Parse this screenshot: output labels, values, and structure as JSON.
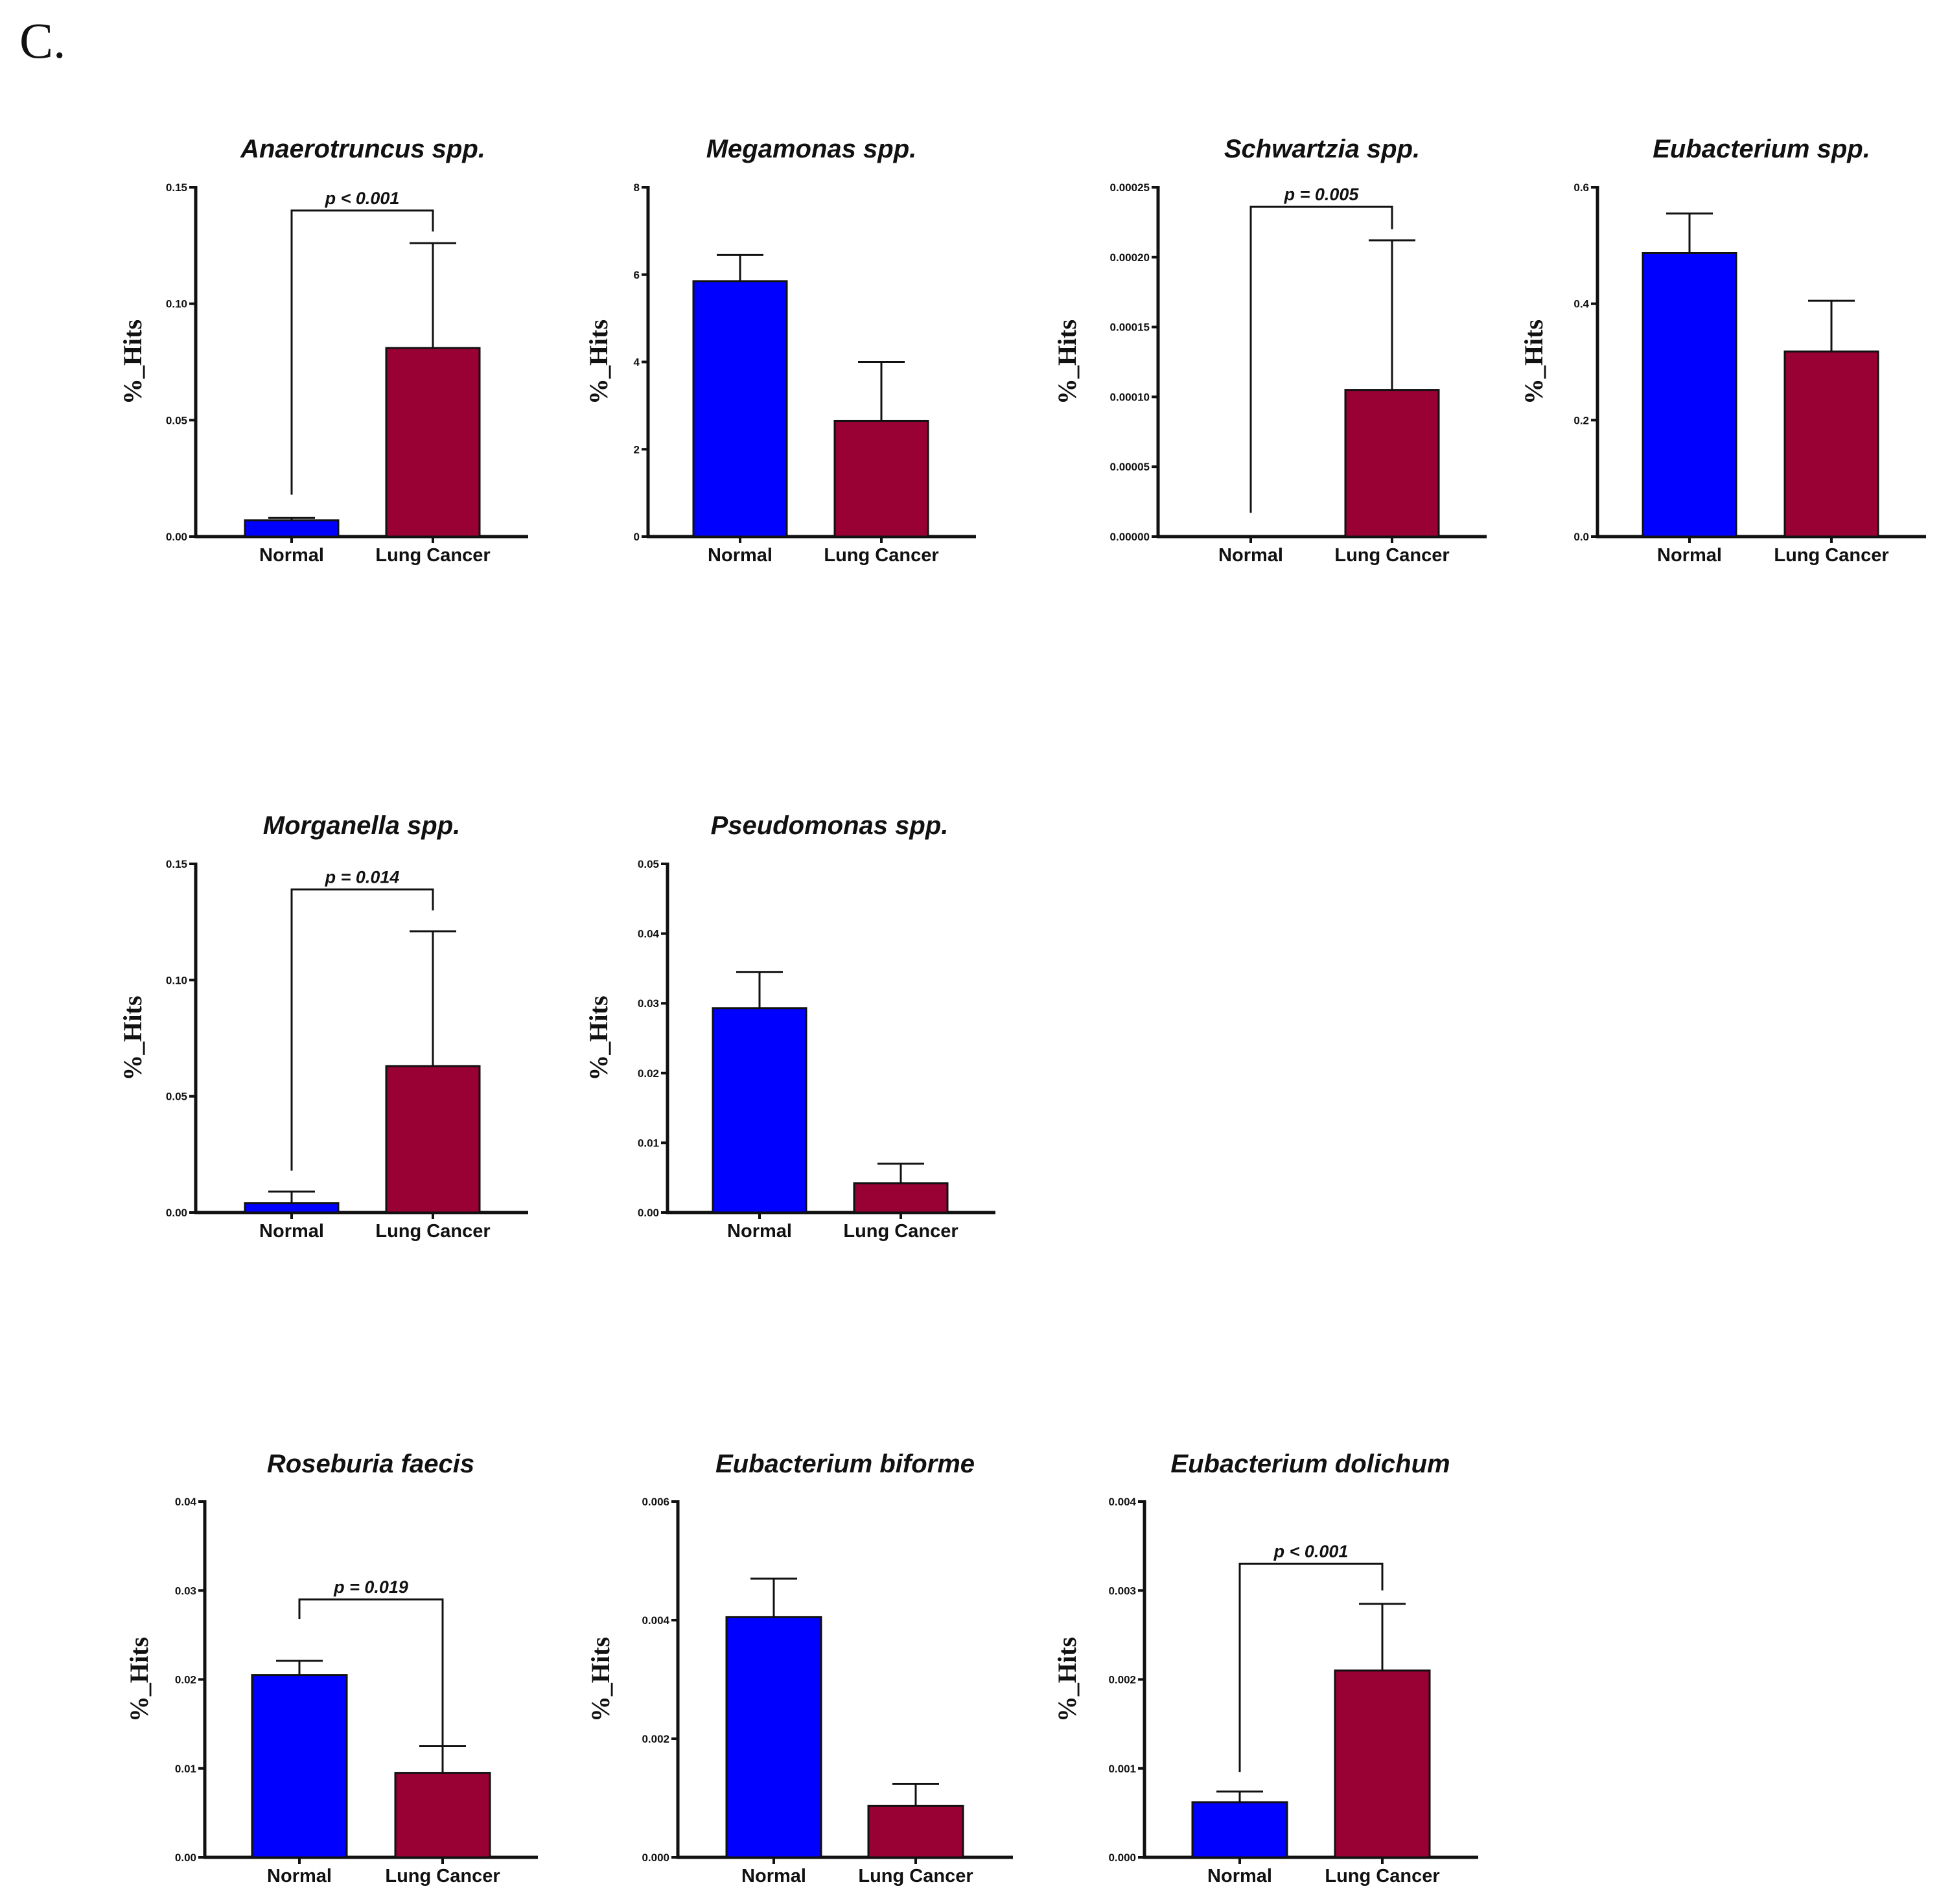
{
  "figure": {
    "panel_label": "C.",
    "colors": {
      "normal": "#0000ff",
      "lung_cancer": "#990033",
      "axis": "#111111"
    }
  },
  "chart_data": [
    {
      "type": "bar",
      "title": "Anaerotruncus spp.",
      "ylabel": "%_Hits",
      "categories": [
        "Normal",
        "Lung Cancer"
      ],
      "values": [
        0.007,
        0.081
      ],
      "errors": [
        0.001,
        0.045
      ],
      "ylim": [
        0,
        0.15
      ],
      "yticks": [
        0,
        0.05,
        0.1,
        0.15
      ],
      "ytick_labels": [
        "0.00",
        "0.05",
        "0.10",
        "0.15"
      ],
      "significance": {
        "label": "p  < 0.001",
        "bracket_top": 0.14,
        "left_end": 0.018,
        "right_end": 0.131
      }
    },
    {
      "type": "bar",
      "title": "Megamonas spp.",
      "ylabel": "%_Hits",
      "categories": [
        "Normal",
        "Lung Cancer"
      ],
      "values": [
        5.85,
        2.65
      ],
      "errors": [
        0.6,
        1.35
      ],
      "ylim": [
        0,
        8
      ],
      "yticks": [
        0,
        2,
        4,
        6,
        8
      ],
      "ytick_labels": [
        "0",
        "2",
        "4",
        "6",
        "8"
      ]
    },
    {
      "type": "bar",
      "title": "Schwartzia spp.",
      "ylabel": "%_Hits",
      "categories": [
        "Normal",
        "Lung Cancer"
      ],
      "values": [
        0,
        0.000105
      ],
      "errors": [
        0,
        0.000107
      ],
      "ylim": [
        0,
        0.00025
      ],
      "yticks": [
        0,
        5e-05,
        0.0001,
        0.00015,
        0.0002,
        0.00025
      ],
      "ytick_labels": [
        "0.00000",
        "0.00005",
        "0.00010",
        "0.00015",
        "0.00020",
        "0.00025"
      ],
      "significance": {
        "label": "p = 0.005",
        "bracket_top": 0.000236,
        "left_end": 1.7e-05,
        "right_end": 0.00022
      }
    },
    {
      "type": "bar",
      "title": "Eubacterium spp.",
      "ylabel": "%_Hits",
      "categories": [
        "Normal",
        "Lung Cancer"
      ],
      "values": [
        0.487,
        0.318
      ],
      "errors": [
        0.068,
        0.087
      ],
      "ylim": [
        0,
        0.6
      ],
      "yticks": [
        0,
        0.2,
        0.4,
        0.6
      ],
      "ytick_labels": [
        "0.0",
        "0.2",
        "0.4",
        "0.6"
      ]
    },
    {
      "type": "bar",
      "title": "Morganella spp.",
      "ylabel": "%_Hits",
      "categories": [
        "Normal",
        "Lung Cancer"
      ],
      "values": [
        0.004,
        0.063
      ],
      "errors": [
        0.005,
        0.058
      ],
      "ylim": [
        0,
        0.15
      ],
      "yticks": [
        0,
        0.05,
        0.1,
        0.15
      ],
      "ytick_labels": [
        "0.00",
        "0.05",
        "0.10",
        "0.15"
      ],
      "significance": {
        "label": "p = 0.014",
        "bracket_top": 0.139,
        "left_end": 0.018,
        "right_end": 0.13
      }
    },
    {
      "type": "bar",
      "title": "Pseudomonas spp.",
      "ylabel": "%_Hits",
      "categories": [
        "Normal",
        "Lung Cancer"
      ],
      "values": [
        0.0293,
        0.0042
      ],
      "errors": [
        0.0052,
        0.0028
      ],
      "ylim": [
        0,
        0.05
      ],
      "yticks": [
        0,
        0.01,
        0.02,
        0.03,
        0.04,
        0.05
      ],
      "ytick_labels": [
        "0.00",
        "0.01",
        "0.02",
        "0.03",
        "0.04",
        "0.05"
      ]
    },
    {
      "type": "bar",
      "title": "Roseburia faecis",
      "ylabel": "%_Hits",
      "categories": [
        "Normal",
        "Lung Cancer"
      ],
      "values": [
        0.0205,
        0.0095
      ],
      "errors": [
        0.0016,
        0.003
      ],
      "ylim": [
        0,
        0.04
      ],
      "yticks": [
        0,
        0.01,
        0.02,
        0.03,
        0.04
      ],
      "ytick_labels": [
        "0.00",
        "0.01",
        "0.02",
        "0.03",
        "0.04"
      ],
      "significance": {
        "label": "p = 0.019",
        "bracket_top": 0.029,
        "left_end": 0.0268,
        "right_end": 0.0098
      }
    },
    {
      "type": "bar",
      "title": "Eubacterium biforme",
      "ylabel": "%_Hits",
      "categories": [
        "Normal",
        "Lung Cancer"
      ],
      "values": [
        0.00405,
        0.00087
      ],
      "errors": [
        0.00065,
        0.00037
      ],
      "ylim": [
        0,
        0.006
      ],
      "yticks": [
        0,
        0.002,
        0.004,
        0.006
      ],
      "ytick_labels": [
        "0.000",
        "0.002",
        "0.004",
        "0.006"
      ]
    },
    {
      "type": "bar",
      "title": "Eubacterium dolichum",
      "ylabel": "%_Hits",
      "categories": [
        "Normal",
        "Lung Cancer"
      ],
      "values": [
        0.00062,
        0.0021
      ],
      "errors": [
        0.00012,
        0.00075
      ],
      "ylim": [
        0,
        0.004
      ],
      "yticks": [
        0,
        0.001,
        0.002,
        0.003,
        0.004
      ],
      "ytick_labels": [
        "0.000",
        "0.001",
        "0.002",
        "0.003",
        "0.004"
      ],
      "significance": {
        "label": "p < 0.001",
        "bracket_top": 0.0033,
        "left_end": 0.00096,
        "right_end": 0.003
      }
    }
  ]
}
